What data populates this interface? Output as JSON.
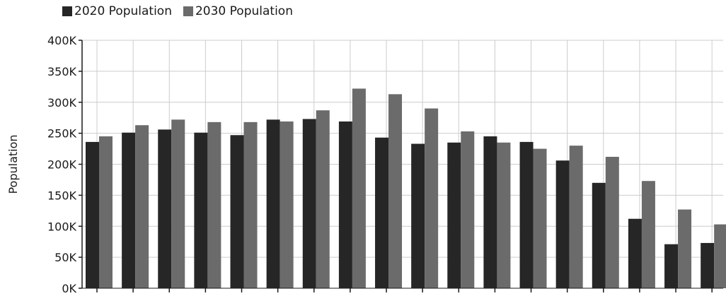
{
  "legend": {
    "items": [
      {
        "label": "2020 Population",
        "color": "#262626"
      },
      {
        "label": "2030 Population",
        "color": "#6b6b6b"
      }
    ]
  },
  "chart_data": {
    "type": "bar",
    "ylabel": "Population",
    "ylim": [
      0,
      400000
    ],
    "yticks": [
      {
        "value": 0,
        "label": "0K"
      },
      {
        "value": 50000,
        "label": "50K"
      },
      {
        "value": 100000,
        "label": "100K"
      },
      {
        "value": 150000,
        "label": "150K"
      },
      {
        "value": 200000,
        "label": "200K"
      },
      {
        "value": 250000,
        "label": "250K"
      },
      {
        "value": 300000,
        "label": "300K"
      },
      {
        "value": 350000,
        "label": "350K"
      },
      {
        "value": 400000,
        "label": "400K"
      }
    ],
    "grid": true,
    "legend_position": "top-left",
    "series": [
      {
        "name": "2020 Population",
        "color": "#262626",
        "values": [
          236000,
          251000,
          256000,
          251000,
          247000,
          272000,
          273000,
          269000,
          243000,
          233000,
          235000,
          245000,
          236000,
          206000,
          170000,
          112000,
          71000,
          73000
        ]
      },
      {
        "name": "2030 Population",
        "color": "#6b6b6b",
        "values": [
          245000,
          263000,
          272000,
          268000,
          268000,
          269000,
          287000,
          322000,
          313000,
          290000,
          253000,
          235000,
          225000,
          230000,
          212000,
          173000,
          127000,
          103000
        ]
      }
    ]
  }
}
